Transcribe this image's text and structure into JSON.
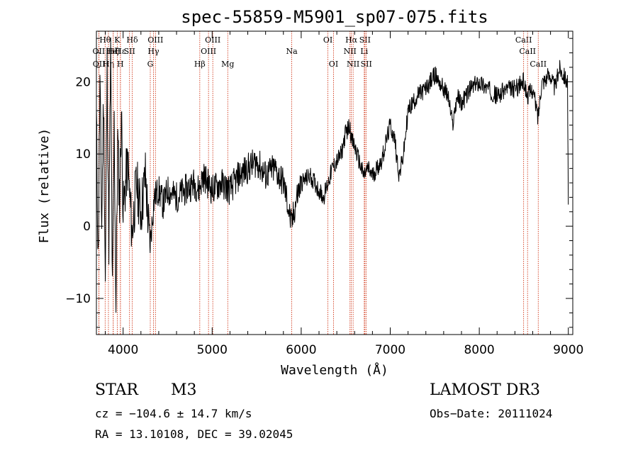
{
  "chart_data": {
    "type": "line",
    "title": "spec-55859-M5901_sp07-075.fits",
    "xlabel": "Wavelength (Å)",
    "ylabel": "Flux (relative)",
    "xlim": [
      3700,
      9050
    ],
    "ylim": [
      -15,
      27
    ],
    "xticks": [
      4000,
      5000,
      6000,
      7000,
      8000,
      9000
    ],
    "yticks": [
      -10,
      0,
      10,
      20
    ],
    "line_color": "#000000",
    "marker_color": "#cc2200",
    "series": [
      {
        "name": "flux",
        "x": [
          3700,
          3720,
          3740,
          3760,
          3780,
          3800,
          3820,
          3840,
          3860,
          3880,
          3900,
          3920,
          3940,
          3960,
          3980,
          4000,
          4050,
          4100,
          4150,
          4200,
          4250,
          4300,
          4350,
          4400,
          4450,
          4500,
          4600,
          4700,
          4800,
          4850,
          4900,
          4950,
          5000,
          5100,
          5200,
          5300,
          5400,
          5500,
          5600,
          5700,
          5800,
          5850,
          5890,
          5950,
          6000,
          6100,
          6200,
          6250,
          6300,
          6350,
          6400,
          6450,
          6500,
          6550,
          6563,
          6600,
          6650,
          6700,
          6750,
          6800,
          6900,
          7000,
          7050,
          7100,
          7150,
          7200,
          7250,
          7300,
          7400,
          7500,
          7550,
          7600,
          7650,
          7700,
          7750,
          7800,
          7900,
          8000,
          8100,
          8200,
          8300,
          8400,
          8500,
          8540,
          8600,
          8660,
          8700,
          8800,
          8850,
          8900,
          8950,
          8990,
          9000
        ],
        "y": [
          15,
          -5,
          20,
          0,
          18,
          -8,
          22,
          -2,
          24,
          -10,
          14,
          -11,
          12,
          3,
          16,
          2,
          9,
          -1,
          6,
          2,
          7,
          -3,
          4,
          5,
          3,
          5,
          4,
          5,
          6,
          5,
          7,
          6,
          5,
          6,
          5,
          7,
          8,
          9,
          7,
          8,
          6,
          3,
          0,
          4,
          6,
          7,
          5,
          4,
          6,
          8,
          9,
          10,
          13,
          14,
          12,
          11,
          9,
          7,
          8,
          7,
          9,
          14,
          12,
          7,
          10,
          16,
          17,
          18,
          19,
          21,
          20,
          19,
          18,
          14,
          18,
          17,
          19,
          20,
          19,
          18,
          19,
          19,
          20,
          18,
          19,
          15,
          20,
          21,
          19,
          22,
          21,
          20,
          3
        ],
        "dense_noise": true
      }
    ],
    "lines": [
      {
        "name": "CaII K",
        "label": "K",
        "wl": 3934,
        "row": 1
      },
      {
        "name": "CaII H",
        "label": "H",
        "wl": 3969,
        "row": 3
      },
      {
        "name": "H-theta",
        "label": "Hθ",
        "wl": 3798,
        "row": 1
      },
      {
        "name": "H-eta",
        "label": "Hη",
        "wl": 3835,
        "row": 3
      },
      {
        "name": "H-zeta",
        "label": "Hζ",
        "wl": 3889,
        "row": 2
      },
      {
        "name": "H-epsilon",
        "label": "Hε",
        "wl": 3970,
        "row": 2
      },
      {
        "name": "OII",
        "label": "OII",
        "wl": 3727,
        "row": 2
      },
      {
        "name": "OII",
        "label": "OII",
        "wl": 3729,
        "row": 3
      },
      {
        "name": "HeI",
        "label": "HeI",
        "wl": 3889,
        "row": 2
      },
      {
        "name": "SII",
        "label": "SII",
        "wl": 4072,
        "row": 2
      },
      {
        "name": "H-delta",
        "label": "Hδ",
        "wl": 4102,
        "row": 1
      },
      {
        "name": "G band",
        "label": "G",
        "wl": 4305,
        "row": 3
      },
      {
        "name": "H-gamma",
        "label": "Hγ",
        "wl": 4341,
        "row": 2
      },
      {
        "name": "OIII 4363",
        "label": "OIII",
        "wl": 4363,
        "row": 1
      },
      {
        "name": "H-beta",
        "label": "Hβ",
        "wl": 4861,
        "row": 3
      },
      {
        "name": "OIII 4959",
        "label": "OIII",
        "wl": 4959,
        "row": 2
      },
      {
        "name": "OIII 5007",
        "label": "OIII",
        "wl": 5007,
        "row": 1
      },
      {
        "name": "Mg",
        "label": "Mg",
        "wl": 5175,
        "row": 3
      },
      {
        "name": "Na",
        "label": "Na",
        "wl": 5894,
        "row": 2
      },
      {
        "name": "OI 6300",
        "label": "OI",
        "wl": 6300,
        "row": 1
      },
      {
        "name": "OI 6363",
        "label": "OI",
        "wl": 6363,
        "row": 3
      },
      {
        "name": "NII 6548",
        "label": "NII",
        "wl": 6548,
        "row": 2
      },
      {
        "name": "H-alpha",
        "label": "Hα",
        "wl": 6563,
        "row": 1
      },
      {
        "name": "NII 6583",
        "label": "NII",
        "wl": 6583,
        "row": 3
      },
      {
        "name": "Li",
        "label": "Li",
        "wl": 6708,
        "row": 2
      },
      {
        "name": "SII 6716",
        "label": "SII",
        "wl": 6716,
        "row": 1
      },
      {
        "name": "SII 6731",
        "label": "SII",
        "wl": 6731,
        "row": 3
      },
      {
        "name": "CaII 8498",
        "label": "CaII",
        "wl": 8498,
        "row": 1
      },
      {
        "name": "CaII 8542",
        "label": "CaII",
        "wl": 8542,
        "row": 2
      },
      {
        "name": "CaII 8662",
        "label": "CaII",
        "wl": 8662,
        "row": 3
      }
    ]
  },
  "info": {
    "class": "STAR",
    "subclass": "M3",
    "cz": "cz = −104.6 ± 14.7 km/s",
    "coords": "RA =  13.10108, DEC =  39.02045",
    "survey": "LAMOST DR3",
    "obs_date": "Obs−Date: 20111024"
  }
}
